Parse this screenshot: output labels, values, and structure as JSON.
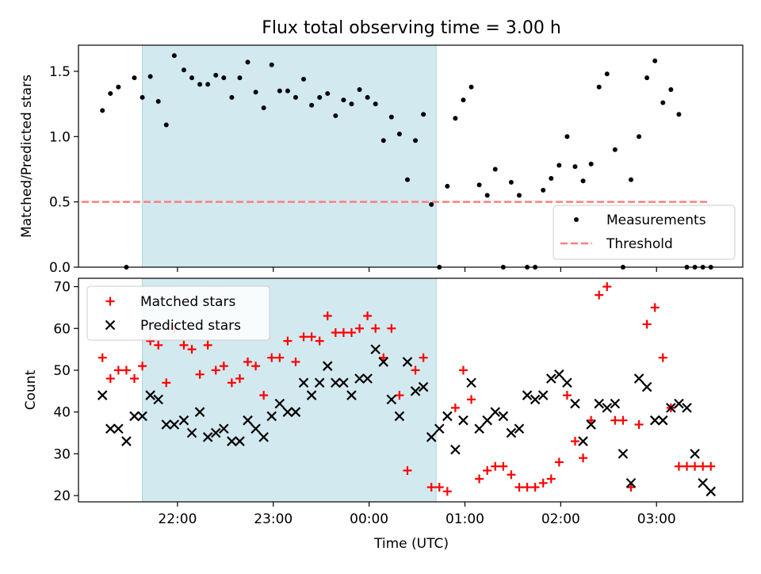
{
  "title": "Flux total observing time = 3.00 h",
  "chart_data": [
    {
      "type": "scatter",
      "panel": "top",
      "ylabel": "Matched/Predicted stars",
      "ylim": [
        0,
        1.7
      ],
      "yticks": [
        "0.0",
        "0.5",
        "1.0",
        "1.5"
      ],
      "ytick_values": [
        0,
        0.5,
        1.0,
        1.5
      ],
      "shaded_span": {
        "from": "21:38",
        "to": "00:42",
        "color": "#d3e9f0"
      },
      "threshold": {
        "name": "Threshold",
        "value": 0.5,
        "from": "21:00",
        "to": "03:32",
        "color": "#ff7f7f"
      },
      "legend": [
        "Measurements",
        "Threshold"
      ],
      "legend_position": "lower right",
      "series": [
        {
          "name": "Measurements",
          "color": "#000000",
          "x": [
            "21:13",
            "21:18",
            "21:23",
            "21:28",
            "21:33",
            "21:38",
            "21:43",
            "21:48",
            "21:53",
            "21:58",
            "22:04",
            "22:09",
            "22:14",
            "22:19",
            "22:24",
            "22:29",
            "22:34",
            "22:39",
            "22:44",
            "22:49",
            "22:54",
            "22:59",
            "23:04",
            "23:09",
            "23:14",
            "23:19",
            "23:24",
            "23:29",
            "23:34",
            "23:39",
            "23:44",
            "23:49",
            "23:54",
            "23:59",
            "00:04",
            "00:09",
            "00:14",
            "00:19",
            "00:24",
            "00:29",
            "00:34",
            "00:39",
            "00:44",
            "00:49",
            "00:54",
            "00:59",
            "01:04",
            "01:09",
            "01:14",
            "01:19",
            "01:24",
            "01:29",
            "01:34",
            "01:39",
            "01:44",
            "01:49",
            "01:54",
            "01:59",
            "02:04",
            "02:09",
            "02:14",
            "02:19",
            "02:24",
            "02:29",
            "02:34",
            "02:39",
            "02:44",
            "02:49",
            "02:54",
            "02:59",
            "03:04",
            "03:09",
            "03:14",
            "03:19",
            "03:24",
            "03:29",
            "03:34"
          ],
          "y": [
            1.2,
            1.33,
            1.38,
            0.0,
            1.45,
            1.3,
            1.46,
            1.27,
            1.09,
            1.62,
            1.51,
            1.45,
            1.4,
            1.4,
            1.47,
            1.45,
            1.3,
            1.45,
            1.57,
            1.34,
            1.22,
            1.55,
            1.35,
            1.35,
            1.3,
            1.44,
            1.24,
            1.3,
            1.33,
            1.16,
            1.28,
            1.25,
            1.36,
            1.3,
            1.25,
            0.97,
            1.15,
            1.02,
            0.67,
            0.97,
            1.17,
            0.48,
            0.0,
            0.62,
            1.14,
            1.28,
            1.38,
            0.63,
            0.55,
            0.75,
            0.0,
            0.65,
            0.55,
            0.0,
            0.0,
            0.59,
            0.68,
            0.78,
            1.0,
            0.77,
            0.66,
            0.79,
            1.38,
            1.48,
            0.9,
            0.0,
            0.67,
            1.0,
            1.45,
            1.58,
            1.26,
            1.36,
            1.17,
            0.0,
            0.0,
            0.0,
            0.0
          ]
        }
      ]
    },
    {
      "type": "scatter",
      "panel": "bottom",
      "xlabel": "Time (UTC)",
      "ylabel": "Count",
      "ylim": [
        18.5,
        72
      ],
      "yticks": [
        "20",
        "30",
        "40",
        "50",
        "60",
        "70"
      ],
      "ytick_values": [
        20,
        30,
        40,
        50,
        60,
        70
      ],
      "xlim": [
        "20:58",
        "03:54"
      ],
      "xticks": [
        "22:00",
        "23:00",
        "00:00",
        "01:00",
        "02:00",
        "03:00"
      ],
      "shaded_span": {
        "from": "21:38",
        "to": "00:42",
        "color": "#d3e9f0"
      },
      "legend": [
        "Matched stars",
        "Predicted stars"
      ],
      "legend_position": "upper left",
      "series": [
        {
          "name": "Matched stars",
          "marker": "plus",
          "color": "#ff0000",
          "x": [
            "21:13",
            "21:18",
            "21:23",
            "21:28",
            "21:33",
            "21:38",
            "21:43",
            "21:48",
            "21:53",
            "21:58",
            "22:04",
            "22:09",
            "22:14",
            "22:19",
            "22:24",
            "22:29",
            "22:34",
            "22:39",
            "22:44",
            "22:49",
            "22:54",
            "22:59",
            "23:04",
            "23:09",
            "23:14",
            "23:19",
            "23:24",
            "23:29",
            "23:34",
            "23:39",
            "23:44",
            "23:49",
            "23:54",
            "23:59",
            "00:04",
            "00:09",
            "00:14",
            "00:19",
            "00:24",
            "00:29",
            "00:34",
            "00:39",
            "00:44",
            "00:49",
            "00:54",
            "00:59",
            "01:04",
            "01:09",
            "01:14",
            "01:19",
            "01:24",
            "01:29",
            "01:34",
            "01:39",
            "01:44",
            "01:49",
            "01:54",
            "01:59",
            "02:04",
            "02:09",
            "02:14",
            "02:19",
            "02:24",
            "02:29",
            "02:34",
            "02:39",
            "02:44",
            "02:49",
            "02:54",
            "02:59",
            "03:04",
            "03:09",
            "03:14",
            "03:19",
            "03:24",
            "03:29",
            "03:34"
          ],
          "y": [
            53,
            48,
            50,
            50,
            48,
            51,
            57,
            56,
            47,
            60,
            56,
            55,
            49,
            56,
            50,
            51,
            47,
            48,
            52,
            51,
            44,
            53,
            53,
            57,
            52,
            58,
            58,
            57,
            63,
            59,
            59,
            59,
            60,
            63,
            60,
            53,
            60,
            44,
            26,
            50,
            53,
            22,
            22,
            21,
            41,
            50,
            43,
            24,
            26,
            27,
            27,
            25,
            22,
            22,
            22,
            23,
            24,
            28,
            44,
            33,
            29,
            38,
            68,
            70,
            38,
            38,
            22,
            37,
            61,
            65,
            53,
            41,
            27,
            27,
            27,
            27,
            27
          ]
        },
        {
          "name": "Predicted stars",
          "marker": "x",
          "color": "#000000",
          "x": [
            "21:13",
            "21:18",
            "21:23",
            "21:28",
            "21:33",
            "21:38",
            "21:43",
            "21:48",
            "21:53",
            "21:58",
            "22:04",
            "22:09",
            "22:14",
            "22:19",
            "22:24",
            "22:29",
            "22:34",
            "22:39",
            "22:44",
            "22:49",
            "22:54",
            "22:59",
            "23:04",
            "23:09",
            "23:14",
            "23:19",
            "23:24",
            "23:29",
            "23:34",
            "23:39",
            "23:44",
            "23:49",
            "23:54",
            "23:59",
            "00:04",
            "00:09",
            "00:14",
            "00:19",
            "00:24",
            "00:29",
            "00:34",
            "00:39",
            "00:44",
            "00:49",
            "00:54",
            "00:59",
            "01:04",
            "01:09",
            "01:14",
            "01:19",
            "01:24",
            "01:29",
            "01:34",
            "01:39",
            "01:44",
            "01:49",
            "01:54",
            "01:59",
            "02:04",
            "02:09",
            "02:14",
            "02:19",
            "02:24",
            "02:29",
            "02:34",
            "02:39",
            "02:44",
            "02:49",
            "02:54",
            "02:59",
            "03:04",
            "03:09",
            "03:14",
            "03:19",
            "03:24",
            "03:29",
            "03:34"
          ],
          "y": [
            44,
            36,
            36,
            33,
            39,
            39,
            44,
            43,
            37,
            37,
            38,
            35,
            40,
            34,
            35,
            36,
            33,
            33,
            38,
            36,
            34,
            39,
            42,
            40,
            40,
            47,
            44,
            47,
            51,
            47,
            47,
            44,
            48,
            48,
            55,
            52,
            43,
            39,
            52,
            45,
            46,
            34,
            36,
            39,
            31,
            38,
            47,
            36,
            38,
            40,
            39,
            35,
            36,
            44,
            43,
            44,
            48,
            49,
            47,
            42,
            33,
            37,
            42,
            41,
            42,
            30,
            23,
            48,
            46,
            38,
            38,
            41,
            42,
            41,
            30,
            23,
            21
          ]
        }
      ]
    }
  ]
}
